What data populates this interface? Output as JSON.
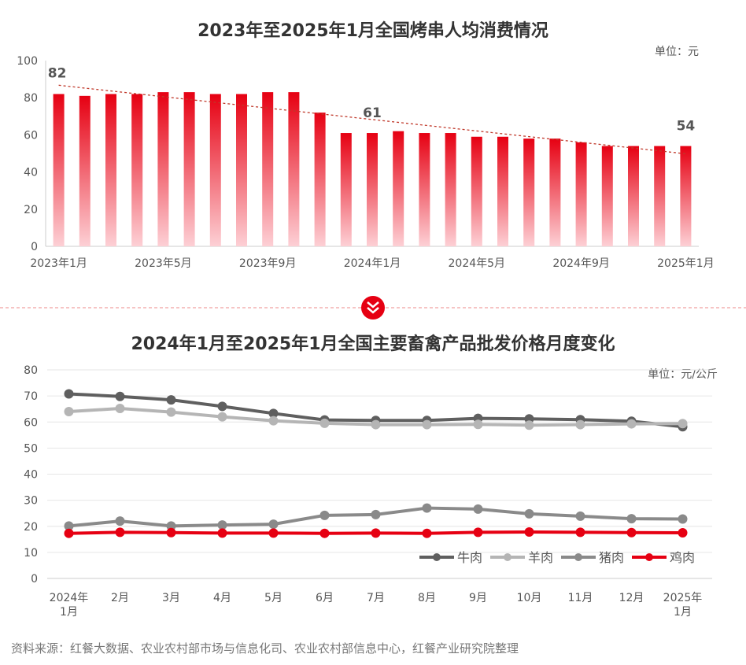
{
  "chart_data": [
    {
      "type": "bar",
      "title": "2023年至2025年1月全国烤串人均消费情况",
      "unit": "单位：元",
      "ylim": [
        0,
        100
      ],
      "yticks": [
        0,
        20,
        40,
        60,
        80,
        100
      ],
      "categories": [
        "2023年1月",
        "2023年2月",
        "2023年3月",
        "2023年4月",
        "2023年5月",
        "2023年6月",
        "2023年7月",
        "2023年8月",
        "2023年9月",
        "2023年10月",
        "2023年11月",
        "2023年12月",
        "2024年1月",
        "2024年2月",
        "2024年3月",
        "2024年4月",
        "2024年5月",
        "2024年6月",
        "2024年7月",
        "2024年8月",
        "2024年9月",
        "2024年10月",
        "2024年11月",
        "2024年12月",
        "2025年1月"
      ],
      "xtick_labels": [
        "2023年1月",
        "2023年5月",
        "2023年9月",
        "2024年1月",
        "2024年5月",
        "2024年9月",
        "2025年1月"
      ],
      "values": [
        82,
        81,
        82,
        82,
        83,
        83,
        82,
        82,
        83,
        83,
        72,
        61,
        61,
        62,
        61,
        61,
        59,
        59,
        58,
        58,
        56,
        54,
        54,
        54,
        54
      ],
      "data_labels": [
        {
          "category": "2023年1月",
          "text": "82"
        },
        {
          "category": "2024年1月",
          "text": "61"
        },
        {
          "category": "2025年1月",
          "text": "54"
        }
      ],
      "trendline": "linear dashed",
      "colors": {
        "bar_top": "#e60012",
        "bar_bottom": "#fdd0d5",
        "trend": "#c0392b"
      }
    },
    {
      "type": "line",
      "title": "2024年1月至2025年1月全国主要畜禽产品批发价格月度变化",
      "unit": "单位：元/公斤",
      "ylim": [
        0,
        80
      ],
      "yticks": [
        0,
        10,
        20,
        30,
        40,
        50,
        60,
        70,
        80
      ],
      "grid": true,
      "legend": "bottom-right",
      "categories": [
        "2024年\n1月",
        "2月",
        "3月",
        "4月",
        "5月",
        "6月",
        "7月",
        "8月",
        "9月",
        "10月",
        "11月",
        "12月",
        "2025年\n1月"
      ],
      "series": [
        {
          "name": "牛肉",
          "color": "#5f5f5f",
          "values": [
            70.8,
            69.8,
            68.5,
            66,
            63.3,
            60.8,
            60.6,
            60.6,
            61.4,
            61.2,
            60.9,
            60.3,
            58.2
          ]
        },
        {
          "name": "羊肉",
          "color": "#b5b5b5",
          "values": [
            64,
            65.2,
            63.8,
            62,
            60.5,
            59.5,
            59,
            59,
            59.1,
            58.8,
            59,
            59.3,
            59.4
          ]
        },
        {
          "name": "猪肉",
          "color": "#8a8a8a",
          "values": [
            20.1,
            22,
            20.1,
            20.5,
            20.8,
            24.2,
            24.5,
            27,
            26.6,
            24.8,
            23.9,
            22.9,
            22.8
          ]
        },
        {
          "name": "鸡肉",
          "color": "#e60012",
          "values": [
            17.3,
            17.7,
            17.6,
            17.4,
            17.4,
            17.3,
            17.4,
            17.3,
            17.7,
            17.8,
            17.7,
            17.6,
            17.5
          ]
        }
      ]
    }
  ],
  "source": "资料来源：红餐大数据、农业农村部市场与信息化司、农业农村部信息中心，红餐产业研究院整理",
  "divider_icon": "chevron-double-down-icon",
  "accent": "#e60012"
}
